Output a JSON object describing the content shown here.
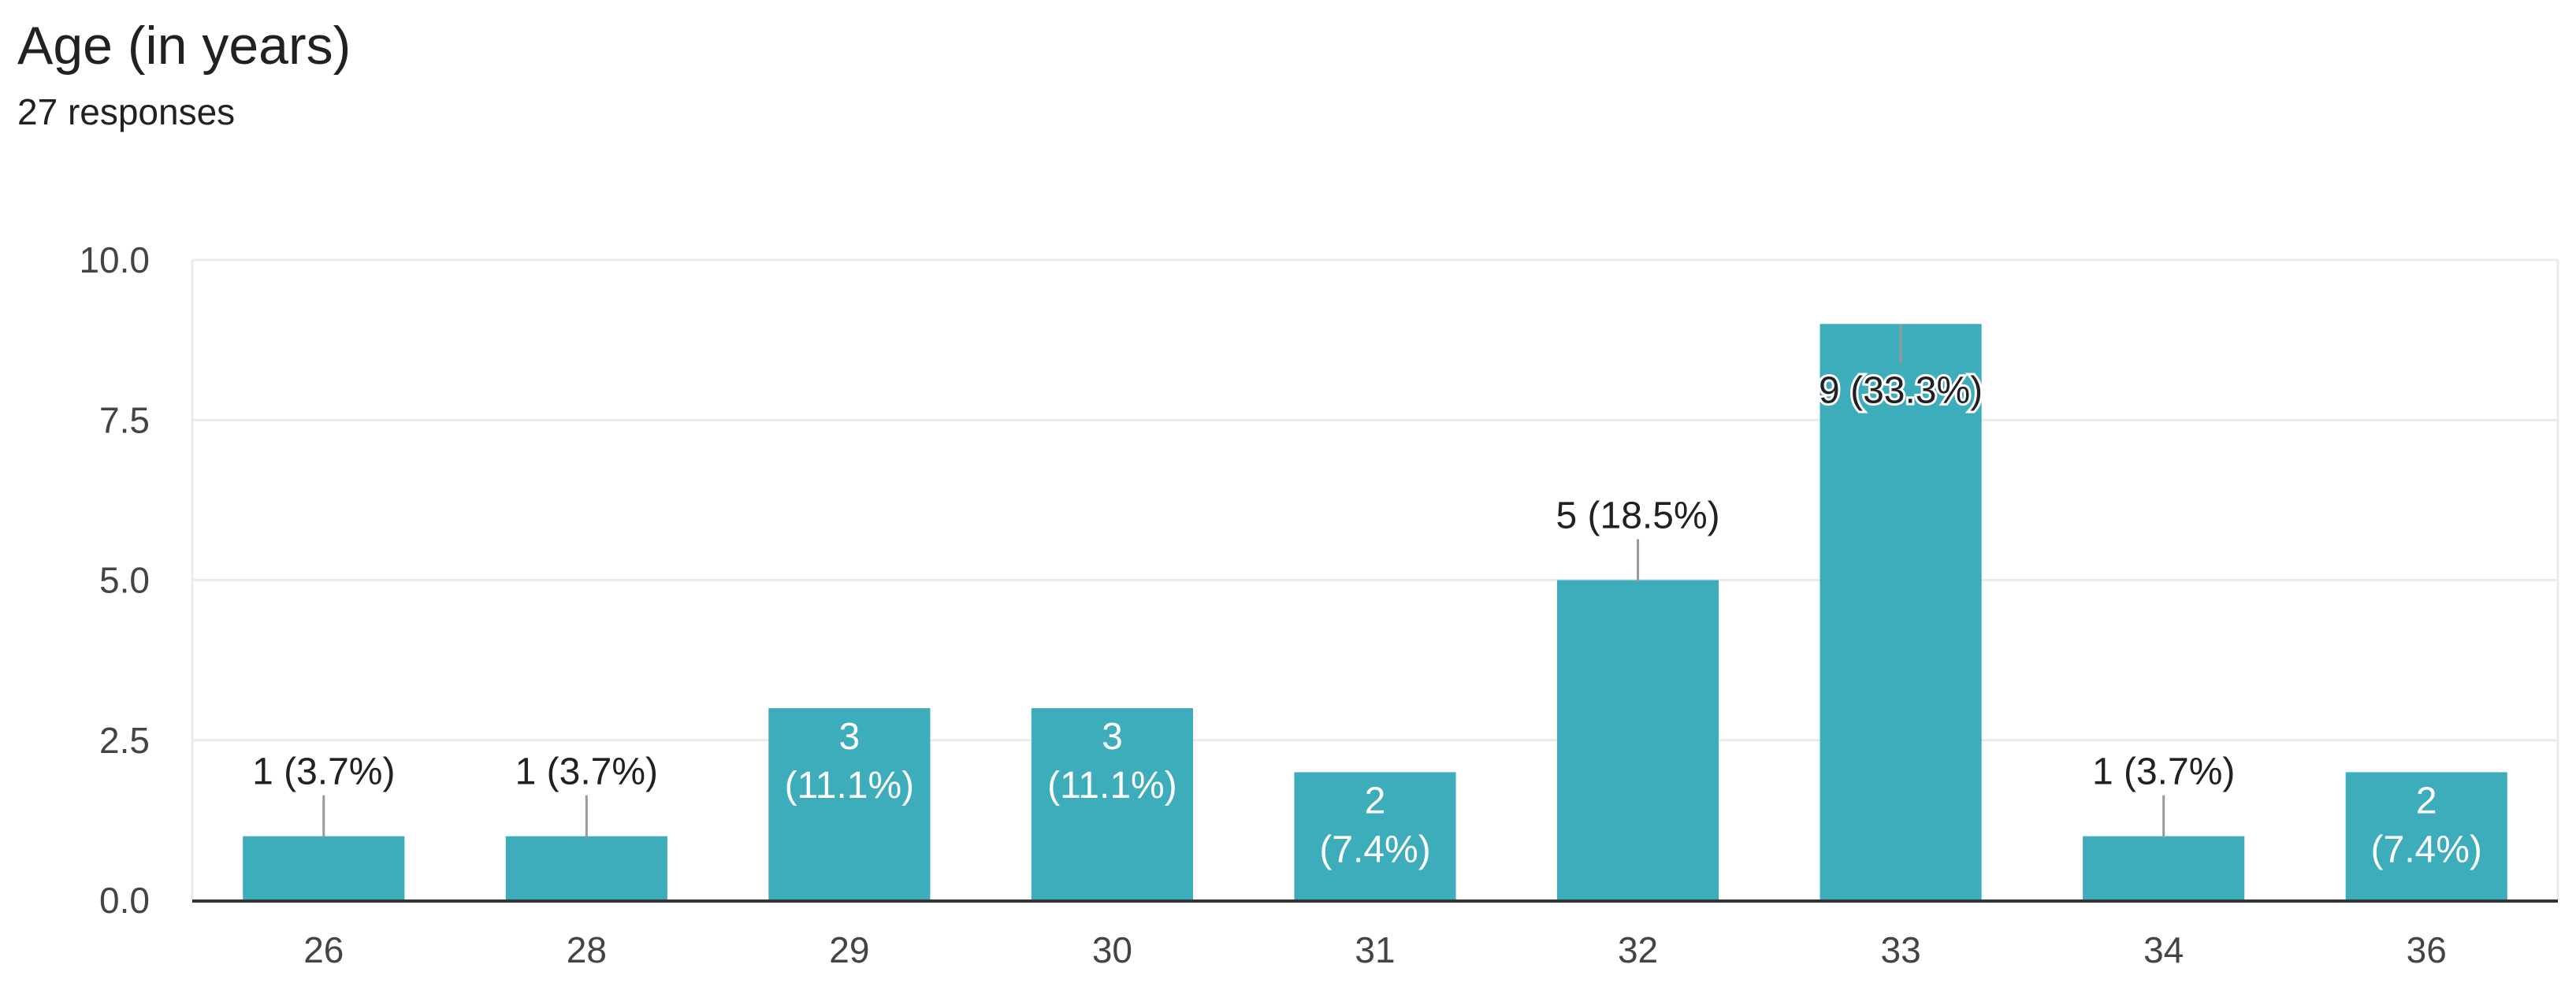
{
  "header": {
    "title": "Age (in years)",
    "subtitle": "27 responses"
  },
  "colors": {
    "bar": "#3DACBB",
    "grid": "#EBEBEB",
    "axis": "#333333",
    "label_outside": "#202124",
    "label_inside": "#FFFFFF",
    "leader": "#999999"
  },
  "chart_data": {
    "type": "bar",
    "title": "Age (in years)",
    "subtitle": "27 responses",
    "xlabel": "",
    "ylabel": "",
    "categories": [
      "26",
      "28",
      "29",
      "30",
      "31",
      "32",
      "33",
      "34",
      "36"
    ],
    "values": [
      1,
      1,
      3,
      3,
      2,
      5,
      9,
      1,
      2
    ],
    "percent_labels": [
      "3.7%",
      "3.7%",
      "11.1%",
      "11.1%",
      "7.4%",
      "18.5%",
      "33.3%",
      "3.7%",
      "7.4%"
    ],
    "ylim": [
      0,
      10
    ],
    "yticks": [
      "0.0",
      "2.5",
      "5.0",
      "7.5",
      "10.0"
    ],
    "ytick_values": [
      0,
      2.5,
      5,
      7.5,
      10
    ],
    "grid": true,
    "legend": "none"
  }
}
